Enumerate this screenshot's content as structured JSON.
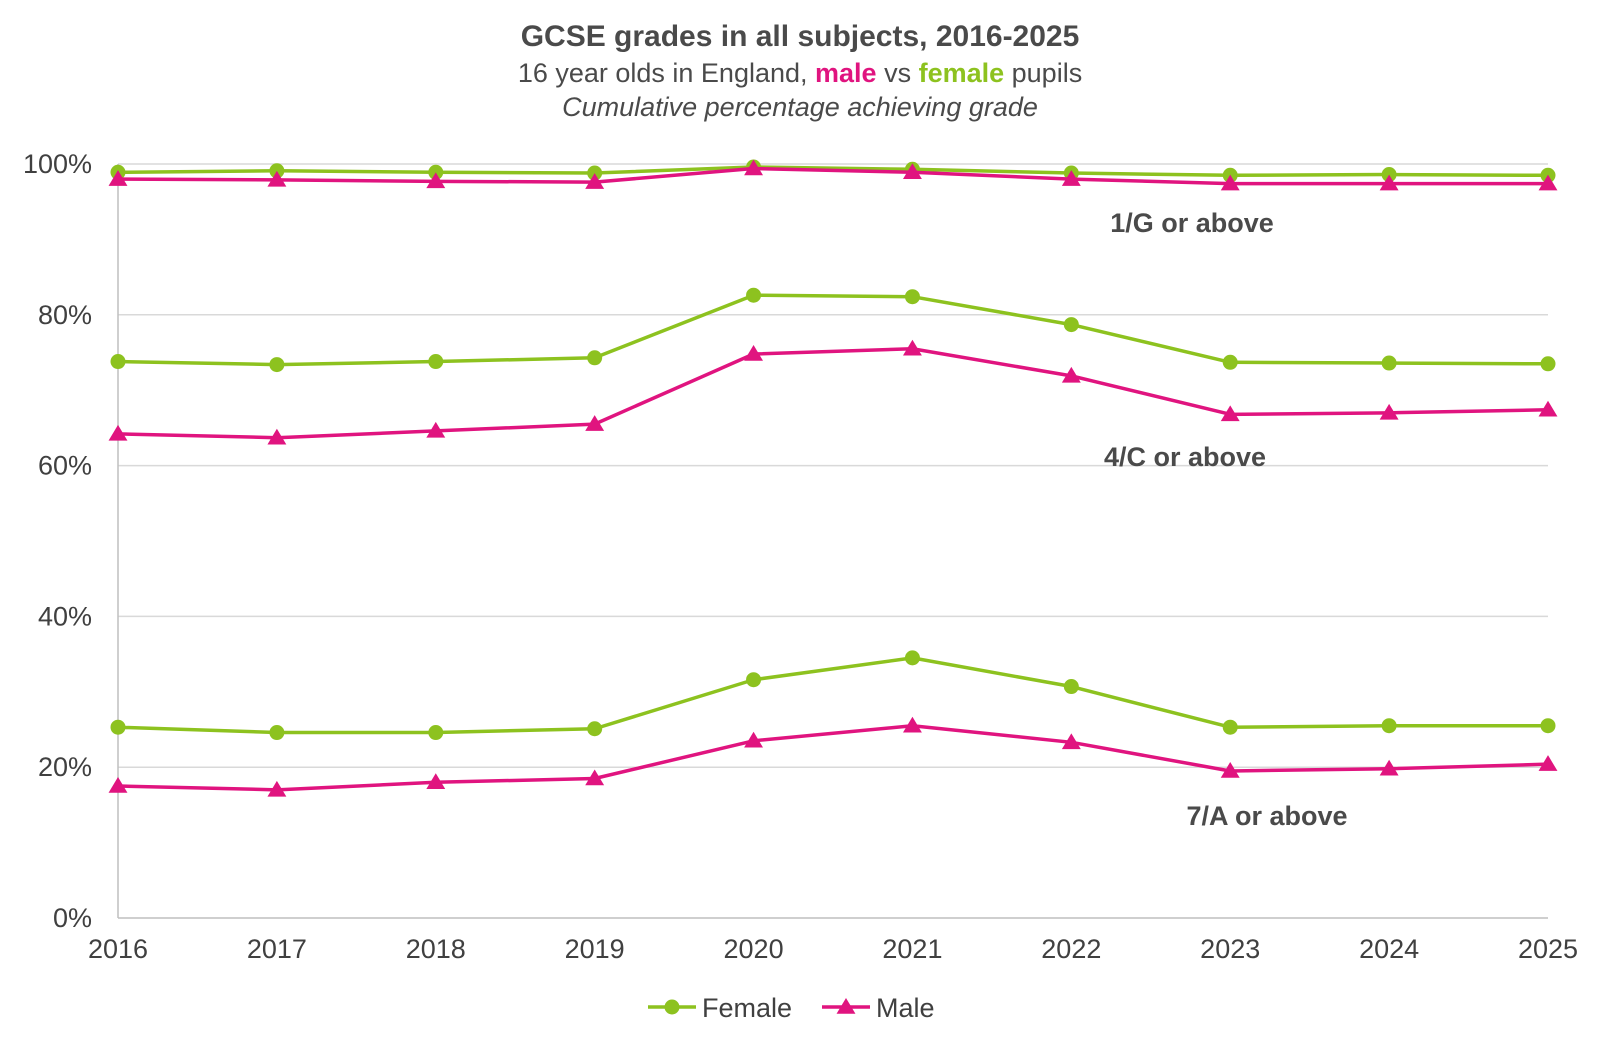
{
  "chart_data": {
    "type": "line",
    "title": "GCSE grades in all subjects, 2016-2025",
    "subtitle": {
      "prefix": "16 year olds in England, ",
      "male_word": "male",
      "middle": " vs ",
      "female_word": "female",
      "suffix": " pupils"
    },
    "note": "Cumulative percentage achieving grade",
    "x": [
      "2016",
      "2017",
      "2018",
      "2019",
      "2020",
      "2021",
      "2022",
      "2023",
      "2024",
      "2025"
    ],
    "ylim": [
      0,
      100
    ],
    "y_ticks": [
      "0%",
      "20%",
      "40%",
      "60%",
      "80%",
      "100%"
    ],
    "grid": true,
    "legend_position": "bottom",
    "legend": [
      {
        "label": "Female",
        "color": "#8dc21f",
        "marker": "circle"
      },
      {
        "label": "Male",
        "color": "#e0147f",
        "marker": "triangle"
      }
    ],
    "bands": [
      {
        "label": "1/G or above",
        "series": [
          {
            "name": "Female",
            "values": [
              98.9,
              99.1,
              98.9,
              98.8,
              99.6,
              99.3,
              98.8,
              98.5,
              98.6,
              98.5
            ]
          },
          {
            "name": "Male",
            "values": [
              98.0,
              97.9,
              97.7,
              97.6,
              99.4,
              98.9,
              98.0,
              97.4,
              97.4,
              97.4
            ]
          }
        ]
      },
      {
        "label": "4/C or above",
        "series": [
          {
            "name": "Female",
            "values": [
              73.8,
              73.4,
              73.8,
              74.3,
              82.6,
              82.4,
              78.7,
              73.7,
              73.6,
              73.5
            ]
          },
          {
            "name": "Male",
            "values": [
              64.2,
              63.7,
              64.6,
              65.5,
              74.8,
              75.5,
              71.9,
              66.8,
              67.0,
              67.4
            ]
          }
        ]
      },
      {
        "label": "7/A or above",
        "series": [
          {
            "name": "Female",
            "values": [
              25.3,
              24.6,
              24.6,
              25.1,
              31.6,
              34.5,
              30.7,
              25.3,
              25.5,
              25.5
            ]
          },
          {
            "name": "Male",
            "values": [
              17.5,
              17.0,
              18.0,
              18.5,
              23.5,
              25.5,
              23.3,
              19.5,
              19.8,
              20.4
            ]
          }
        ]
      }
    ]
  }
}
